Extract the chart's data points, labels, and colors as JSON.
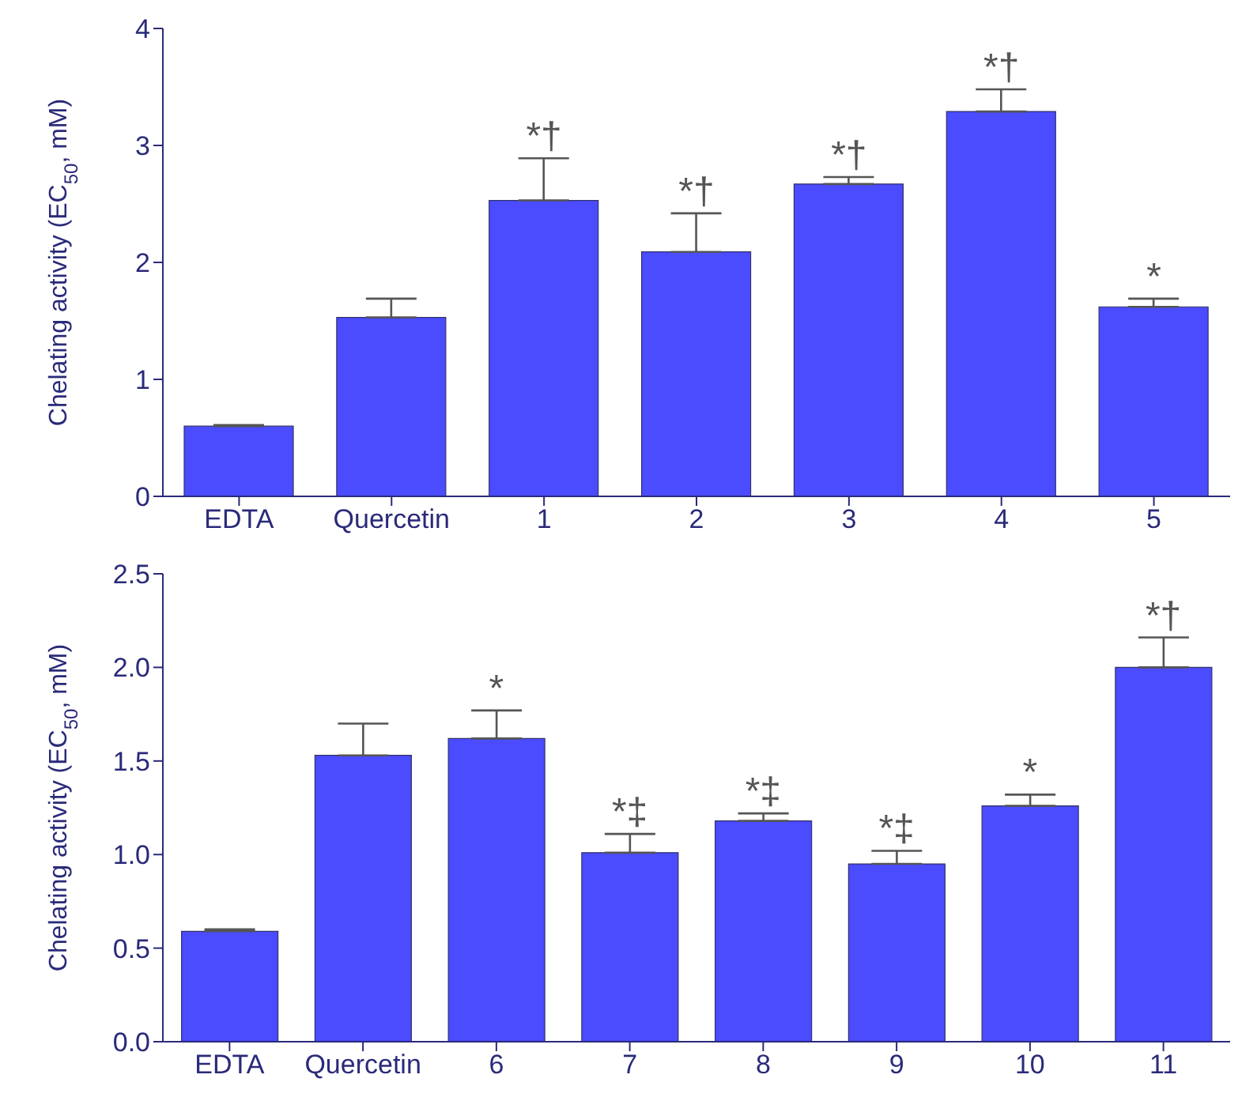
{
  "chart_data": [
    {
      "type": "bar",
      "ylabel": "Chelating activity (EC$_{50}$, mM)",
      "categories": [
        "EDTA",
        "Quercetin",
        "1",
        "2",
        "3",
        "4",
        "5"
      ],
      "values": [
        0.6,
        1.53,
        2.53,
        2.09,
        2.67,
        3.29,
        1.62
      ],
      "color": "#4b4bff",
      "errors": [
        [
          0.6,
          0.61
        ],
        [
          1.53,
          1.69
        ],
        [
          2.53,
          2.89
        ],
        [
          2.09,
          2.42
        ],
        [
          2.67,
          2.73
        ],
        [
          3.29,
          3.48
        ],
        [
          1.62,
          1.69
        ]
      ],
      "ylim": [
        0,
        4
      ],
      "yticks": [
        0,
        1,
        2,
        3,
        4
      ],
      "grid": false,
      "annotations": [
        {
          "text": "*†",
          "x": "1",
          "y": 2.89
        },
        {
          "text": "*†",
          "x": "2",
          "y": 2.42
        },
        {
          "text": "*†",
          "x": "3",
          "y": 2.73
        },
        {
          "text": "*†",
          "x": "4",
          "y": 3.48
        },
        {
          "text": "*",
          "x": "5",
          "y": 1.69
        }
      ]
    },
    {
      "type": "bar",
      "ylabel": "Chelating activity (EC$_{50}$, mM)",
      "categories": [
        "EDTA",
        "Quercetin",
        "6",
        "7",
        "8",
        "9",
        "10",
        "11"
      ],
      "values": [
        0.59,
        1.53,
        1.62,
        1.01,
        1.18,
        0.95,
        1.26,
        2.0
      ],
      "color": "#4b4bff",
      "errors": [
        [
          0.59,
          0.6
        ],
        [
          1.53,
          1.7
        ],
        [
          1.62,
          1.77
        ],
        [
          1.01,
          1.11
        ],
        [
          1.18,
          1.22
        ],
        [
          0.95,
          1.02
        ],
        [
          1.26,
          1.32
        ],
        [
          2.0,
          2.16
        ]
      ],
      "ylim": [
        0,
        2.5
      ],
      "yticks": [
        {
          "value": 0,
          "label": "0.0"
        },
        {
          "value": 0.5,
          "label": "0.5"
        },
        {
          "value": 1,
          "label": "1.0"
        },
        {
          "value": 1.5,
          "label": "1.5"
        },
        {
          "value": 2,
          "label": "2.0"
        },
        {
          "value": 2.5,
          "label": "2.5"
        }
      ],
      "grid": false,
      "annotations": [
        {
          "text": "*",
          "x": "6",
          "y": 1.77
        },
        {
          "text": "*‡",
          "x": "7",
          "y": 1.11
        },
        {
          "text": "*‡",
          "x": "8",
          "y": 1.22
        },
        {
          "text": "*‡",
          "x": "9",
          "y": 1.02
        },
        {
          "text": "*",
          "x": "10",
          "y": 1.32
        },
        {
          "text": "*†",
          "x": "11",
          "y": 2.16
        }
      ]
    }
  ]
}
